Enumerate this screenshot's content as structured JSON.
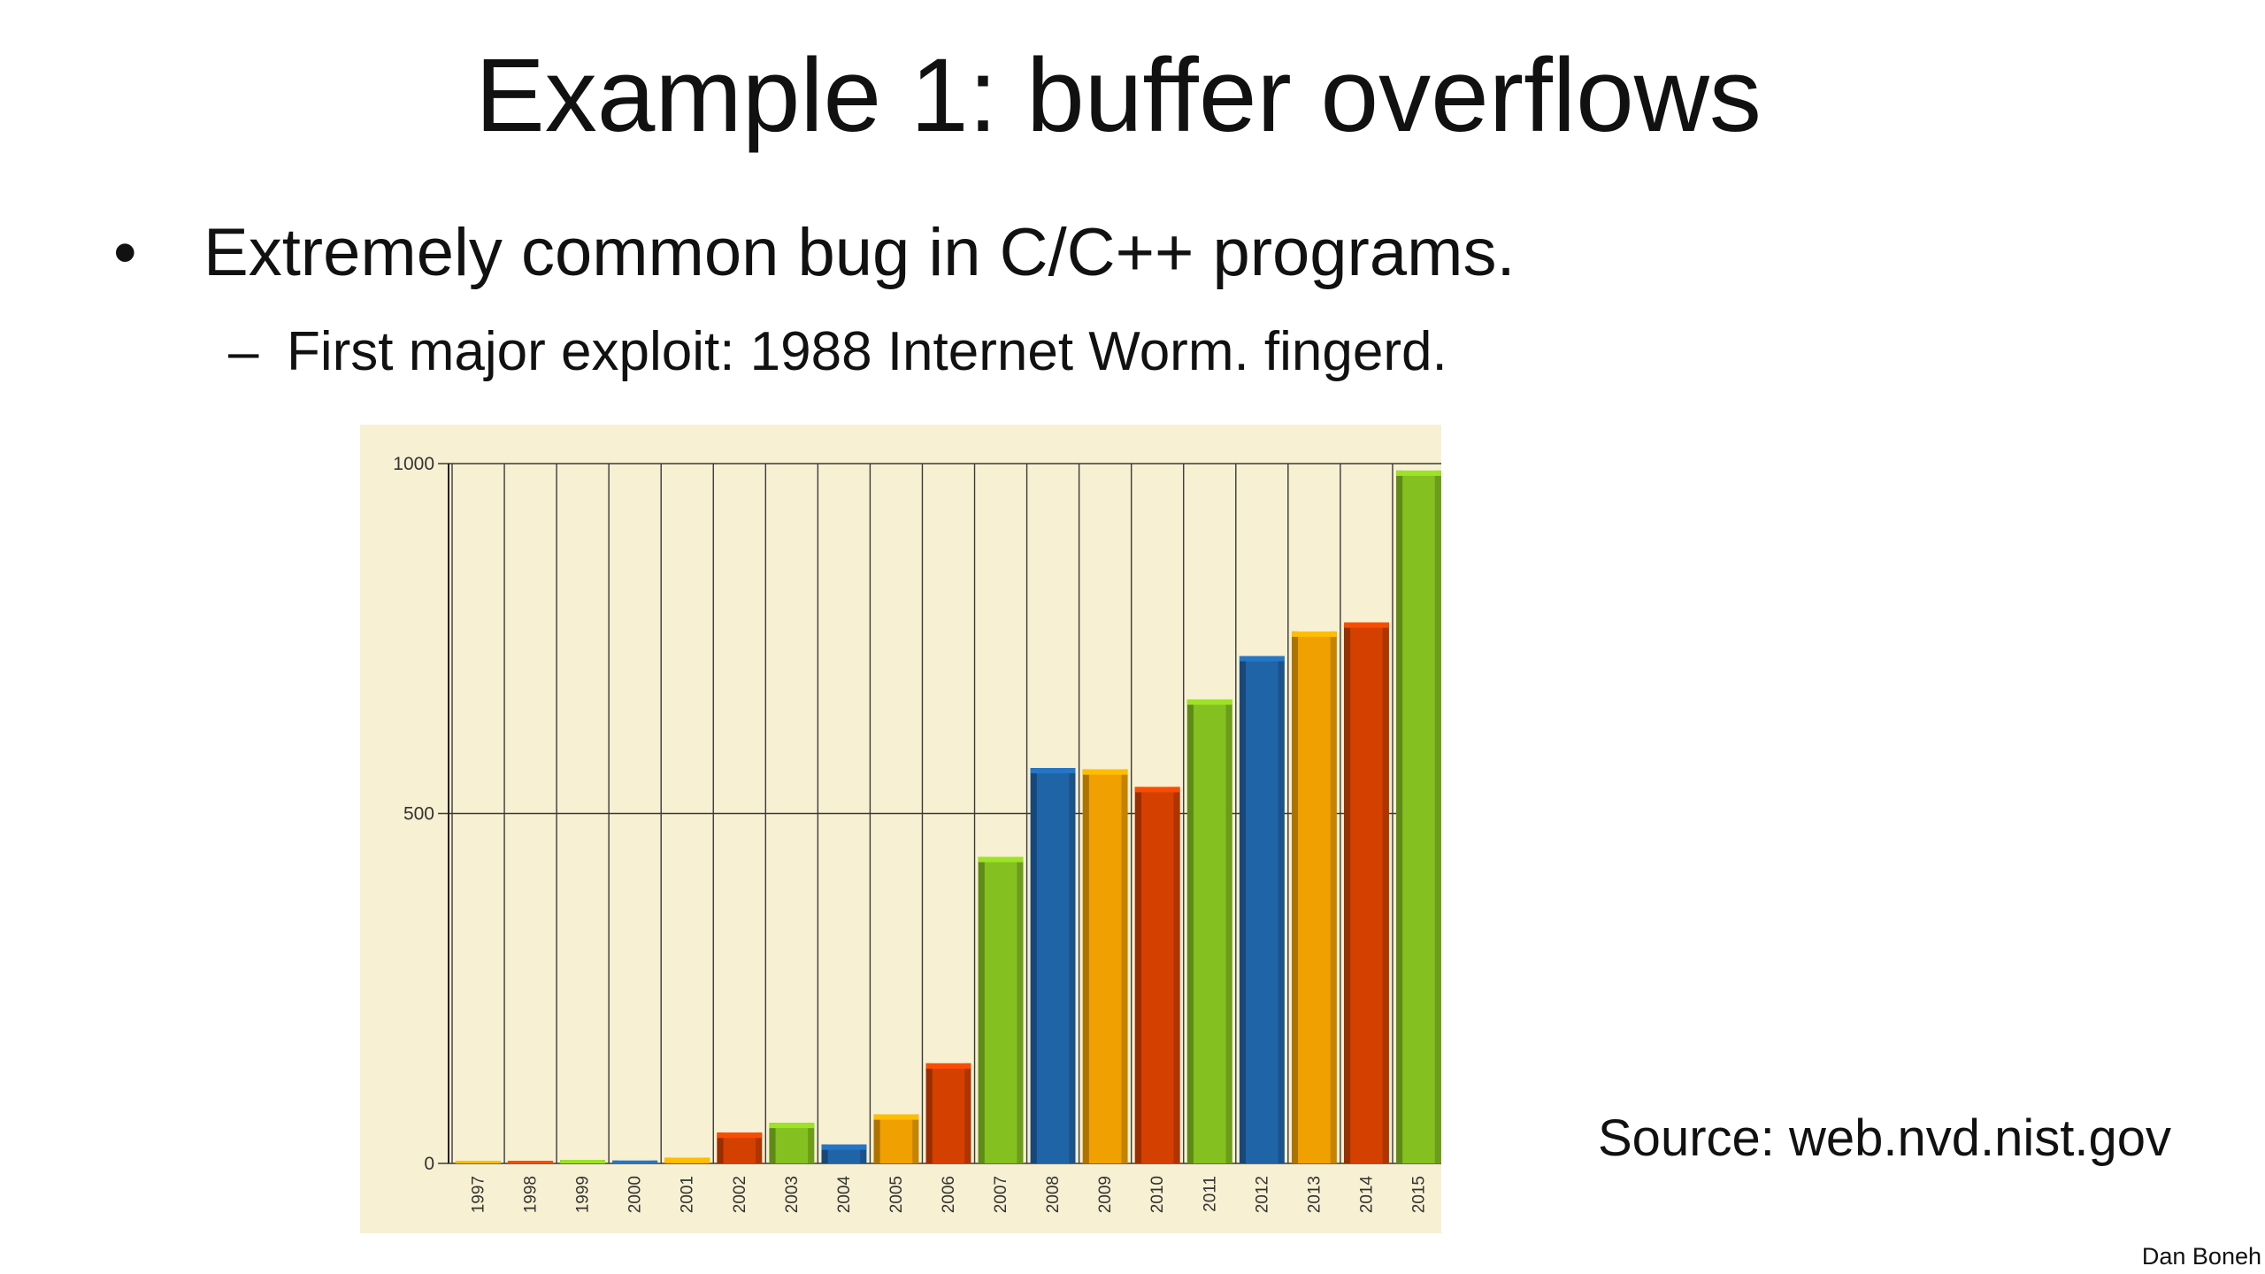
{
  "slide": {
    "title": "Example 1:   buffer overflows",
    "bullet_marker": "•",
    "bullet": "Extremely common bug in C/C++ programs.",
    "sub_marker": "–",
    "sub_bullet": "First major exploit:  1988 Internet Worm.   fingerd.",
    "source": "Source:  web.nvd.nist.gov",
    "author": "Dan Boneh"
  },
  "chart_data": {
    "type": "bar",
    "categories": [
      "1997",
      "1998",
      "1999",
      "2000",
      "2001",
      "2002",
      "2003",
      "2004",
      "2005",
      "2006",
      "2007",
      "2008",
      "2009",
      "2010",
      "2011",
      "2012",
      "2013",
      "2014",
      "2015"
    ],
    "values": [
      2,
      3,
      5,
      4,
      8,
      44,
      58,
      27,
      70,
      143,
      438,
      565,
      563,
      538,
      663,
      725,
      760,
      773,
      990
    ],
    "ylim": [
      0,
      1000
    ],
    "yticks": [
      0,
      500,
      1000
    ],
    "grid": "on",
    "title": "",
    "xlabel": "",
    "ylabel": "",
    "colors": [
      "#f0a000",
      "#d44000",
      "#84c020",
      "#2064a8"
    ],
    "background": "#f7f0d2"
  }
}
